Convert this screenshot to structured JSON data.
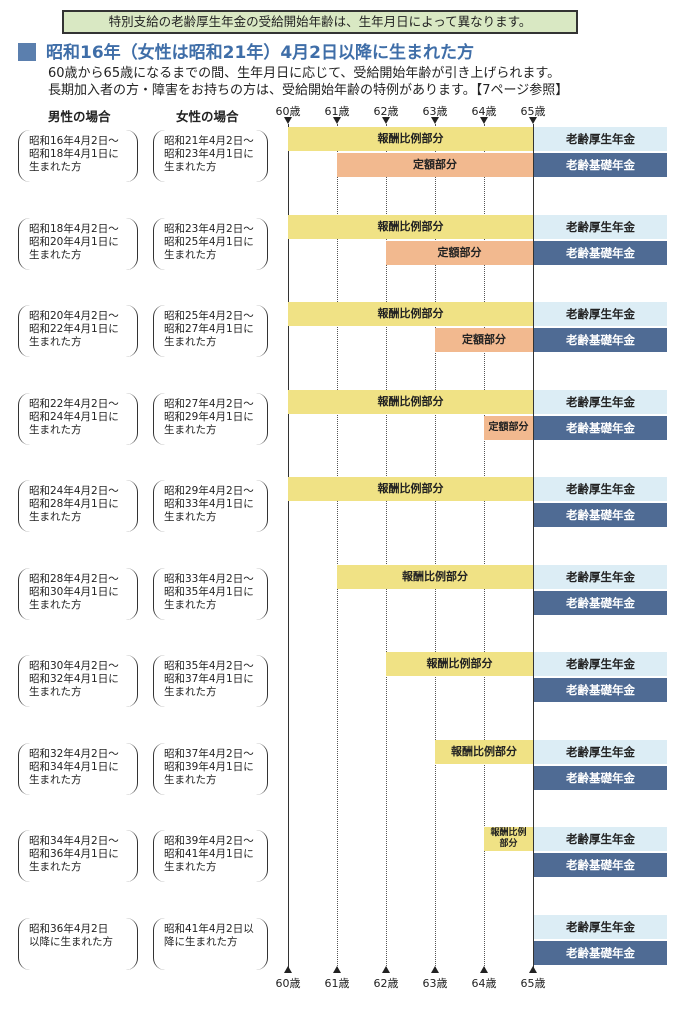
{
  "notice": "特別支給の老齢厚生年金の受給開始年齢は、生年月日によって異なります。",
  "heading": "昭和16年（女性は昭和21年）4月2日以降に生まれた方",
  "subtext": [
    "60歳から65歳になるまでの間、生年月日に応じて、受給開始年齢が引き上げられます。",
    "長期加入者の方・障害をお持ちの方は、受給開始年齢の特例があります。【7ページ参照】"
  ],
  "columns": {
    "men": "男性の場合",
    "women": "女性の場合"
  },
  "ages": [
    "60歳",
    "61歳",
    "62歳",
    "63歳",
    "64歳",
    "65歳"
  ],
  "labels": {
    "hoshu": "報酬比例部分",
    "hoshu_short": "報酬比例部分",
    "teigaku": "定額部分",
    "kosei": "老齢厚生年金",
    "kiso": "老齢基礎年金"
  },
  "rows": [
    {
      "men": "昭和16年4月2日〜\n昭和18年4月1日に\n生まれた方",
      "women": "昭和21年4月2日〜\n昭和23年4月1日に\n生まれた方",
      "hoshu_start": 60,
      "teigaku_start": 61
    },
    {
      "men": "昭和18年4月2日〜\n昭和20年4月1日に\n生まれた方",
      "women": "昭和23年4月2日〜\n昭和25年4月1日に\n生まれた方",
      "hoshu_start": 60,
      "teigaku_start": 62
    },
    {
      "men": "昭和20年4月2日〜\n昭和22年4月1日に\n生まれた方",
      "women": "昭和25年4月2日〜\n昭和27年4月1日に\n生まれた方",
      "hoshu_start": 60,
      "teigaku_start": 63
    },
    {
      "men": "昭和22年4月2日〜\n昭和24年4月1日に\n生まれた方",
      "women": "昭和27年4月2日〜\n昭和29年4月1日に\n生まれた方",
      "hoshu_start": 60,
      "teigaku_start": 64
    },
    {
      "men": "昭和24年4月2日〜\n昭和28年4月1日に\n生まれた方",
      "women": "昭和29年4月2日〜\n昭和33年4月1日に\n生まれた方",
      "hoshu_start": 60,
      "teigaku_start": null
    },
    {
      "men": "昭和28年4月2日〜\n昭和30年4月1日に\n生まれた方",
      "women": "昭和33年4月2日〜\n昭和35年4月1日に\n生まれた方",
      "hoshu_start": 61,
      "teigaku_start": null
    },
    {
      "men": "昭和30年4月2日〜\n昭和32年4月1日に\n生まれた方",
      "women": "昭和35年4月2日〜\n昭和37年4月1日に\n生まれた方",
      "hoshu_start": 62,
      "teigaku_start": null
    },
    {
      "men": "昭和32年4月2日〜\n昭和34年4月1日に\n生まれた方",
      "women": "昭和37年4月2日〜\n昭和39年4月1日に\n生まれた方",
      "hoshu_start": 63,
      "teigaku_start": null
    },
    {
      "men": "昭和34年4月2日〜\n昭和36年4月1日に\n生まれた方",
      "women": "昭和39年4月2日〜\n昭和41年4月1日に\n生まれた方",
      "hoshu_start": 64,
      "teigaku_start": null
    },
    {
      "men": "昭和36年4月2日\n以降に生まれた方",
      "women": "昭和41年4月2日以\n降に生まれた方",
      "hoshu_start": null,
      "teigaku_start": null
    }
  ]
}
